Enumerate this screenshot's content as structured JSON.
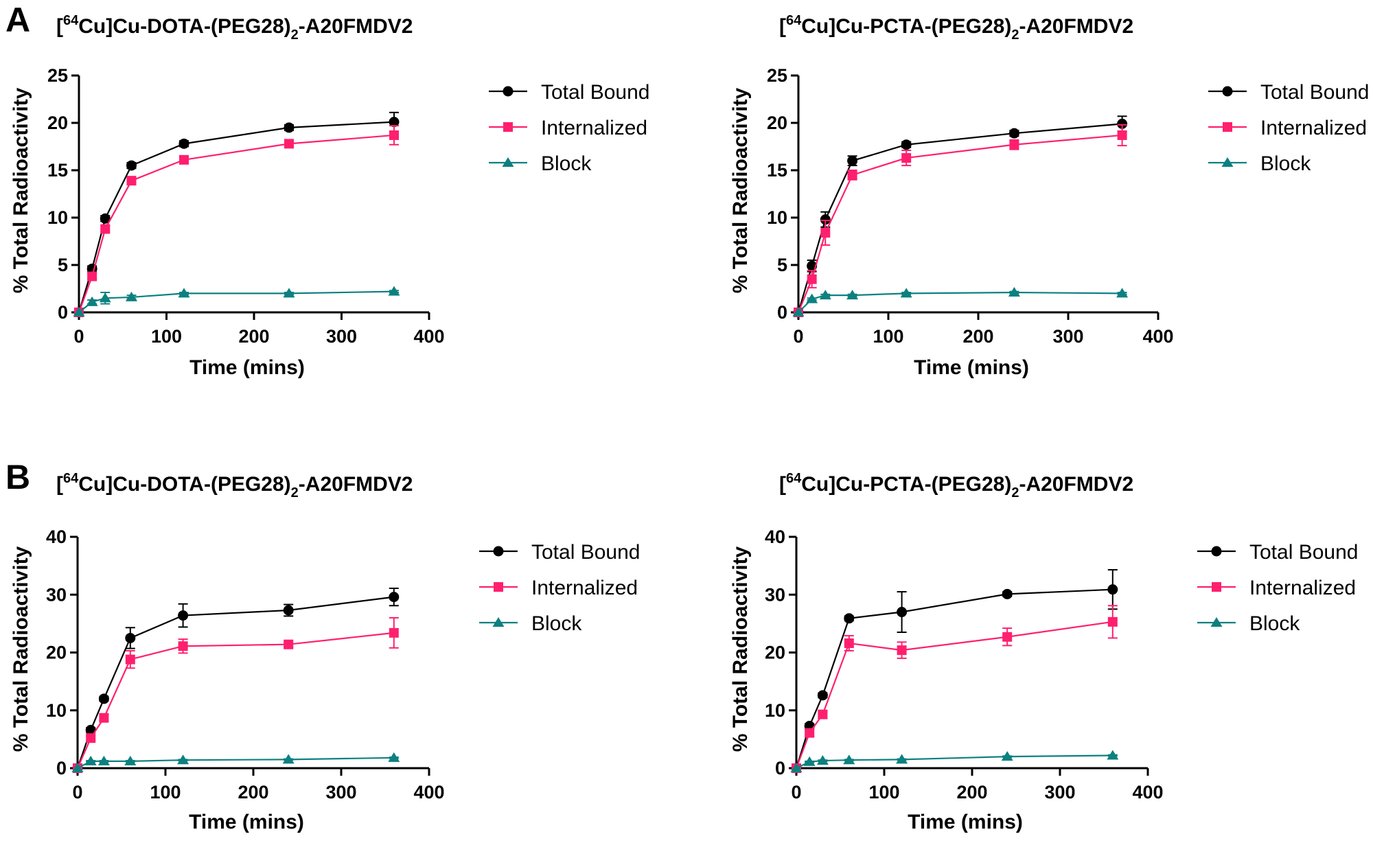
{
  "panels": [
    "A",
    "B"
  ],
  "chart_data": [
    {
      "type": "line",
      "panel": "A",
      "title": "[64Cu]Cu-DOTA-(PEG28)2-A20FMDV2",
      "xlabel": "Time (mins)",
      "ylabel": "% Total Radioactivity",
      "xlim": [
        0,
        400
      ],
      "ylim": [
        0,
        25
      ],
      "xticks": [
        0,
        100,
        200,
        300,
        400
      ],
      "yticks": [
        0,
        5,
        10,
        15,
        20,
        25
      ],
      "legend_position": "right",
      "x": [
        0,
        15,
        30,
        60,
        120,
        240,
        360
      ],
      "series": [
        {
          "name": "Total Bound",
          "marker": "circle",
          "color": "#000000",
          "values": [
            0,
            4.6,
            9.9,
            15.5,
            17.8,
            19.5,
            20.1
          ],
          "errors": [
            0,
            0.3,
            0.3,
            0.3,
            0.3,
            0.3,
            1.0
          ]
        },
        {
          "name": "Internalized",
          "marker": "square",
          "color": "#ff1f6e",
          "values": [
            0,
            3.8,
            8.8,
            13.9,
            16.1,
            17.8,
            18.7
          ],
          "errors": [
            0,
            0.3,
            0.3,
            0.3,
            0.3,
            0.3,
            1.0
          ]
        },
        {
          "name": "Block",
          "marker": "triangle",
          "color": "#0d8080",
          "values": [
            0,
            1.1,
            1.5,
            1.6,
            2.0,
            2.0,
            2.2
          ],
          "errors": [
            0,
            0.2,
            0.6,
            0.2,
            0.1,
            0.1,
            0.1
          ]
        }
      ]
    },
    {
      "type": "line",
      "panel": "A",
      "title": "[64Cu]Cu-PCTA-(PEG28)2-A20FMDV2",
      "xlabel": "Time (mins)",
      "ylabel": "% Total Radioactivity",
      "xlim": [
        0,
        400
      ],
      "ylim": [
        0,
        25
      ],
      "xticks": [
        0,
        100,
        200,
        300,
        400
      ],
      "yticks": [
        0,
        5,
        10,
        15,
        20,
        25
      ],
      "legend_position": "right",
      "x": [
        0,
        15,
        30,
        60,
        120,
        240,
        360
      ],
      "series": [
        {
          "name": "Total Bound",
          "marker": "circle",
          "color": "#000000",
          "values": [
            0,
            4.9,
            9.8,
            16.0,
            17.7,
            18.9,
            19.9
          ],
          "errors": [
            0,
            0.6,
            0.8,
            0.5,
            0.3,
            0.3,
            0.8
          ]
        },
        {
          "name": "Internalized",
          "marker": "square",
          "color": "#ff1f6e",
          "values": [
            0,
            3.5,
            8.4,
            14.5,
            16.3,
            17.7,
            18.7
          ],
          "errors": [
            0,
            0.9,
            1.3,
            0.5,
            0.8,
            0.5,
            1.1
          ]
        },
        {
          "name": "Block",
          "marker": "triangle",
          "color": "#0d8080",
          "values": [
            0,
            1.4,
            1.8,
            1.8,
            2.0,
            2.1,
            2.0
          ],
          "errors": [
            0,
            0.1,
            0.1,
            0.1,
            0.1,
            0.1,
            0.1
          ]
        }
      ]
    },
    {
      "type": "line",
      "panel": "B",
      "title": "[64Cu]Cu-DOTA-(PEG28)2-A20FMDV2",
      "xlabel": "Time (mins)",
      "ylabel": "% Total Radioactivity",
      "xlim": [
        0,
        400
      ],
      "ylim": [
        0,
        40
      ],
      "xticks": [
        0,
        100,
        200,
        300,
        400
      ],
      "yticks": [
        0,
        10,
        20,
        30,
        40
      ],
      "legend_position": "right",
      "x": [
        0,
        15,
        30,
        60,
        120,
        240,
        360
      ],
      "series": [
        {
          "name": "Total Bound",
          "marker": "circle",
          "color": "#000000",
          "values": [
            0,
            6.6,
            12.0,
            22.5,
            26.4,
            27.3,
            29.6
          ],
          "errors": [
            0,
            0.4,
            0.4,
            1.8,
            2.0,
            1.0,
            1.5
          ]
        },
        {
          "name": "Internalized",
          "marker": "square",
          "color": "#ff1f6e",
          "values": [
            0,
            5.2,
            8.7,
            18.8,
            21.1,
            21.4,
            23.4
          ],
          "errors": [
            0,
            0.4,
            0.5,
            1.5,
            1.2,
            0.5,
            2.6
          ]
        },
        {
          "name": "Block",
          "marker": "triangle",
          "color": "#0d8080",
          "values": [
            0,
            1.2,
            1.2,
            1.2,
            1.4,
            1.5,
            1.8
          ],
          "errors": [
            0,
            0.1,
            0.1,
            0.1,
            0.1,
            0.1,
            0.1
          ]
        }
      ]
    },
    {
      "type": "line",
      "panel": "B",
      "title": "[64Cu]Cu-PCTA-(PEG28)2-A20FMDV2",
      "xlabel": "Time (mins)",
      "ylabel": "% Total Radioactivity",
      "xlim": [
        0,
        400
      ],
      "ylim": [
        0,
        40
      ],
      "xticks": [
        0,
        100,
        200,
        300,
        400
      ],
      "yticks": [
        0,
        10,
        20,
        30,
        40
      ],
      "legend_position": "right",
      "x": [
        0,
        15,
        30,
        60,
        120,
        240,
        360
      ],
      "series": [
        {
          "name": "Total Bound",
          "marker": "circle",
          "color": "#000000",
          "values": [
            0,
            7.3,
            12.6,
            25.9,
            27.0,
            30.1,
            30.9
          ],
          "errors": [
            0,
            0.4,
            0.4,
            0.4,
            3.5,
            0.4,
            3.4
          ]
        },
        {
          "name": "Internalized",
          "marker": "square",
          "color": "#ff1f6e",
          "values": [
            0,
            6.1,
            9.3,
            21.6,
            20.4,
            22.7,
            25.3
          ],
          "errors": [
            0,
            0.6,
            0.6,
            1.3,
            1.4,
            1.5,
            2.8
          ]
        },
        {
          "name": "Block",
          "marker": "triangle",
          "color": "#0d8080",
          "values": [
            0,
            1.1,
            1.3,
            1.4,
            1.5,
            2.0,
            2.2
          ],
          "errors": [
            0,
            0.1,
            0.1,
            0.1,
            0.1,
            0.1,
            0.1
          ]
        }
      ]
    }
  ]
}
